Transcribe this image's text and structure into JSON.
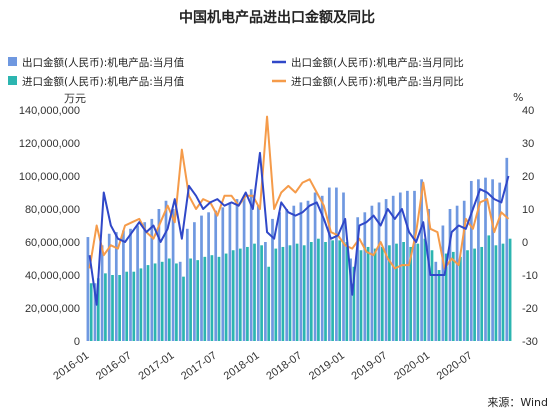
{
  "chart_data": {
    "type": "bar",
    "title": "中国机电产品进出口金额及同比",
    "left_unit": "万元",
    "right_unit": "%",
    "source": "来源：Wind",
    "ylim_left": [
      0,
      140000000
    ],
    "ylim_right": [
      -30,
      40
    ],
    "left_ticks": [
      "0",
      "20,000,000",
      "40,000,000",
      "60,000,000",
      "80,000,000",
      "100,000,000",
      "120,000,000",
      "140,000,000"
    ],
    "right_ticks": [
      "-30",
      "-20",
      "-10",
      "0",
      "10",
      "20",
      "30",
      "40"
    ],
    "x_tick_labels": [
      "2016-01",
      "2016-07",
      "2017-01",
      "2017-07",
      "2018-01",
      "2018-07",
      "2019-01",
      "2019-07",
      "2020-01",
      "2020-07"
    ],
    "legend": {
      "export_bar": "出口金额(人民币):机电产品:当月值",
      "export_yoy": "出口金额(人民币):机电产品:当月同比",
      "import_bar": "进口金额(人民币):机电产品:当月值",
      "import_yoy": "进口金额(人民币):机电产品:当月同比"
    },
    "colors": {
      "export_bar": "#6f98e0",
      "import_bar": "#2cb5b0",
      "export_yoy": "#3048c8",
      "import_yoy": "#f59b4a"
    },
    "months": [
      "2016-01",
      "2016-02",
      "2016-03",
      "2016-04",
      "2016-05",
      "2016-06",
      "2016-07",
      "2016-08",
      "2016-09",
      "2016-10",
      "2016-11",
      "2016-12",
      "2017-01",
      "2017-02",
      "2017-03",
      "2017-04",
      "2017-05",
      "2017-06",
      "2017-07",
      "2017-08",
      "2017-09",
      "2017-10",
      "2017-11",
      "2017-12",
      "2018-01",
      "2018-02",
      "2018-03",
      "2018-04",
      "2018-05",
      "2018-06",
      "2018-07",
      "2018-08",
      "2018-09",
      "2018-10",
      "2018-11",
      "2018-12",
      "2019-01",
      "2019-02",
      "2019-03",
      "2019-04",
      "2019-05",
      "2019-06",
      "2019-07",
      "2019-08",
      "2019-09",
      "2019-10",
      "2019-11",
      "2019-12",
      "2020-01",
      "2020-02",
      "2020-03",
      "2020-04",
      "2020-05",
      "2020-06",
      "2020-07",
      "2020-08",
      "2020-09",
      "2020-10",
      "2020-11",
      "2020-12"
    ],
    "series": [
      {
        "name": "出口金额(人民币):机电产品:当月值",
        "kind": "bar",
        "axis": "left",
        "values": [
          63000000,
          35000000,
          58000000,
          65000000,
          66000000,
          67000000,
          68000000,
          70000000,
          72000000,
          74000000,
          80000000,
          85000000,
          80000000,
          48000000,
          68000000,
          72000000,
          76000000,
          78000000,
          79000000,
          81000000,
          84000000,
          86000000,
          88000000,
          92000000,
          82000000,
          60000000,
          74000000,
          78000000,
          80000000,
          82000000,
          84000000,
          85000000,
          90000000,
          88000000,
          93000000,
          93000000,
          90000000,
          50000000,
          75000000,
          78000000,
          82000000,
          84000000,
          86000000,
          88000000,
          90000000,
          91000000,
          91000000,
          98000000,
          80000000,
          48000000,
          70000000,
          80000000,
          82000000,
          85000000,
          97000000,
          98000000,
          99000000,
          98000000,
          96000000,
          111000000
        ]
      },
      {
        "name": "进口金额(人民币):机电产品:当月值",
        "kind": "bar",
        "axis": "left",
        "values": [
          35000000,
          38000000,
          41000000,
          40000000,
          40000000,
          42000000,
          42000000,
          44000000,
          46000000,
          47000000,
          48000000,
          50000000,
          47000000,
          39000000,
          50000000,
          49000000,
          51000000,
          52000000,
          51000000,
          53000000,
          55000000,
          56000000,
          57000000,
          59000000,
          58000000,
          45000000,
          56000000,
          57000000,
          58000000,
          59000000,
          58000000,
          60000000,
          62000000,
          60000000,
          61000000,
          61000000,
          60000000,
          45000000,
          55000000,
          57000000,
          56000000,
          57000000,
          58000000,
          59000000,
          60000000,
          57000000,
          59000000,
          62000000,
          55000000,
          43000000,
          53000000,
          54000000,
          51000000,
          55000000,
          56000000,
          57000000,
          64000000,
          58000000,
          59000000,
          62000000
        ]
      },
      {
        "name": "出口金额(人民币):机电产品:当月同比",
        "kind": "line",
        "axis": "right",
        "values": [
          -4,
          -19,
          15,
          5,
          1,
          0,
          3,
          6,
          3,
          5,
          0,
          4,
          13,
          1,
          17,
          14,
          10,
          12,
          13,
          11,
          12,
          11,
          15,
          10,
          27,
          3,
          1,
          12,
          9,
          8,
          9,
          11,
          12,
          7,
          1,
          2,
          7,
          -16,
          5,
          6,
          8,
          5,
          10,
          7,
          10,
          3,
          0,
          6,
          -10,
          -10,
          -10,
          3,
          5,
          4,
          10,
          16,
          15,
          13,
          12,
          20
        ]
      },
      {
        "name": "进口金额(人民币):机电产品:当月同比",
        "kind": "line",
        "axis": "right",
        "values": [
          -8,
          5,
          -4,
          -1,
          -2,
          5,
          6,
          7,
          3,
          1,
          6,
          11,
          6,
          28,
          14,
          10,
          13,
          12,
          8,
          14,
          14,
          11,
          14,
          14,
          10,
          38,
          10,
          15,
          17,
          15,
          18,
          19,
          15,
          11,
          3,
          2,
          -1,
          -2,
          1,
          -3,
          -4,
          0,
          -5,
          -8,
          -7,
          -7,
          3,
          18,
          4,
          3,
          -8,
          -5,
          -7,
          7,
          4,
          12,
          13,
          3,
          9,
          7
        ]
      }
    ]
  }
}
